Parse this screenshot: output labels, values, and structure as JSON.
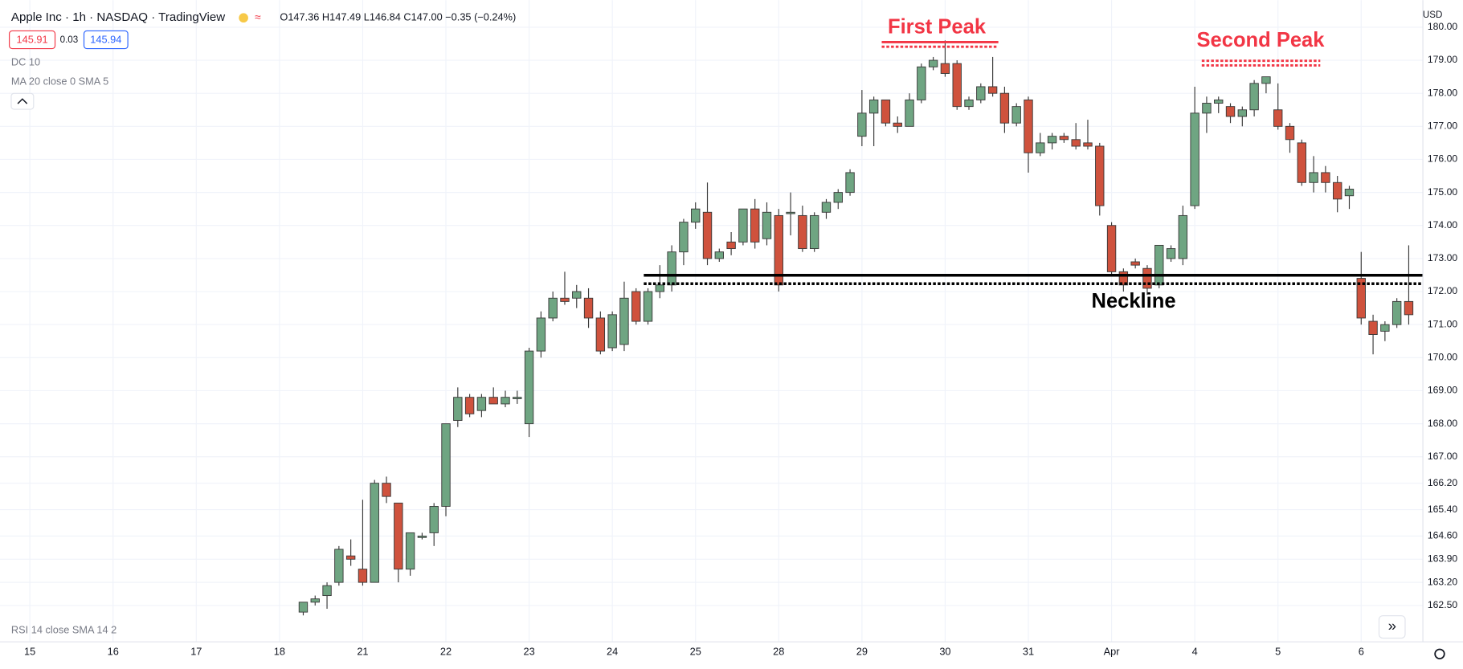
{
  "chart_data": {
    "type": "candlestick",
    "symbol": "Apple Inc · 1h · NASDAQ · TradingView",
    "ohlc_legend": "O147.36 H147.49 L146.84 C147.00 −0.35 (−0.24%)",
    "bid": "145.91",
    "spread": "0.03",
    "ask": "145.94",
    "indicators": [
      "DC 10",
      "MA 20 close 0 SMA 5",
      "RSI 14 close SMA 14 2"
    ],
    "currency": "USD",
    "annotations": [
      "First Peak",
      "Second Peak",
      "Neckline"
    ],
    "up_color": "#6fa582",
    "down_color": "#cf523d",
    "grid": true,
    "categories": [
      "15",
      null,
      null,
      null,
      null,
      null,
      null,
      "16",
      null,
      null,
      null,
      null,
      null,
      null,
      "17",
      null,
      null,
      null,
      null,
      null,
      null,
      "18",
      null,
      null,
      null,
      null,
      null,
      null,
      "21",
      null,
      null,
      null,
      null,
      null,
      null,
      "22",
      null,
      null,
      null,
      null,
      null,
      null,
      "23",
      null,
      null,
      null,
      null,
      null,
      null,
      "24",
      null,
      null,
      null,
      null,
      null,
      null,
      "25",
      null,
      null,
      null,
      null,
      null,
      null,
      "28",
      null,
      null,
      null,
      null,
      null,
      null,
      "29",
      null,
      null,
      null,
      null,
      null,
      null,
      "30",
      null,
      null,
      null,
      null,
      null,
      null,
      "31",
      null,
      null,
      null,
      null,
      null,
      null,
      "Apr",
      null,
      null,
      null,
      null,
      null,
      null,
      "4",
      null,
      null,
      null,
      null,
      null,
      null,
      "5",
      null,
      null,
      null,
      null,
      null,
      null,
      "6",
      null,
      null,
      null,
      null
    ],
    "open": [
      null,
      null,
      null,
      null,
      null,
      null,
      null,
      null,
      null,
      null,
      null,
      null,
      null,
      null,
      null,
      null,
      null,
      null,
      null,
      null,
      null,
      null,
      null,
      162.3,
      162.6,
      162.8,
      163.2,
      164.0,
      163.6,
      163.2,
      166.2,
      165.6,
      163.6,
      164.6,
      164.7,
      165.5,
      168.1,
      168.8,
      168.4,
      168.8,
      168.6,
      168.8,
      168.0,
      170.2,
      171.2,
      171.8,
      171.8,
      171.8,
      171.2,
      170.3,
      170.4,
      172.0,
      171.1,
      172.0,
      172.2,
      173.2,
      174.1,
      174.4,
      173.0,
      173.5,
      173.5,
      174.5,
      173.6,
      174.3,
      174.4,
      174.3,
      173.3,
      174.4,
      174.7,
      175.0,
      176.7,
      177.4,
      177.8,
      177.1,
      177.0,
      177.8,
      178.8,
      178.9,
      178.9,
      177.6,
      177.8,
      178.2,
      178.0,
      177.1,
      177.8,
      176.2,
      176.5,
      176.7,
      176.6,
      176.5,
      176.4,
      174.0,
      172.6,
      172.9,
      172.7,
      172.2,
      173.0,
      173.0,
      174.6,
      177.4,
      177.7,
      177.6,
      177.3,
      177.5,
      178.3,
      177.5,
      177.0,
      176.5,
      175.3,
      175.6,
      175.3,
      174.9,
      172.4,
      171.1,
      170.8,
      171.0,
      171.7
    ],
    "high": [
      null,
      null,
      null,
      null,
      null,
      null,
      null,
      null,
      null,
      null,
      null,
      null,
      null,
      null,
      null,
      null,
      null,
      null,
      null,
      null,
      null,
      null,
      null,
      162.6,
      162.8,
      163.2,
      164.3,
      164.5,
      165.7,
      166.3,
      166.4,
      165.6,
      164.7,
      164.7,
      165.6,
      168.0,
      169.1,
      168.9,
      168.9,
      169.1,
      169.0,
      169.0,
      170.3,
      171.4,
      172.0,
      172.6,
      172.2,
      172.1,
      171.4,
      171.4,
      172.3,
      172.1,
      172.1,
      172.8,
      173.4,
      174.2,
      174.7,
      175.3,
      173.3,
      173.8,
      174.5,
      174.8,
      174.7,
      174.5,
      175.0,
      174.6,
      174.4,
      174.8,
      175.1,
      175.7,
      178.1,
      177.9,
      177.8,
      177.3,
      178.0,
      178.9,
      179.1,
      179.6,
      179.0,
      177.9,
      178.3,
      179.1,
      178.2,
      177.7,
      177.9,
      176.8,
      176.8,
      176.8,
      177.1,
      177.2,
      176.5,
      174.1,
      172.7,
      173.0,
      172.8,
      173.4,
      173.4,
      174.6,
      178.2,
      177.9,
      177.9,
      177.7,
      177.6,
      178.4,
      178.5,
      178.3,
      177.1,
      176.6,
      176.1,
      175.8,
      175.5,
      175.2,
      173.2,
      171.3,
      171.1,
      171.8,
      173.4
    ],
    "low": [
      null,
      null,
      null,
      null,
      null,
      null,
      null,
      null,
      null,
      null,
      null,
      null,
      null,
      null,
      null,
      null,
      null,
      null,
      null,
      null,
      null,
      null,
      null,
      162.2,
      162.5,
      162.4,
      163.1,
      163.7,
      163.1,
      163.2,
      165.6,
      163.2,
      163.4,
      164.5,
      164.3,
      165.2,
      167.9,
      168.2,
      168.2,
      168.6,
      168.5,
      168.6,
      167.6,
      170.0,
      171.1,
      171.6,
      171.5,
      170.9,
      170.1,
      170.2,
      170.2,
      171.0,
      171.0,
      171.8,
      172.0,
      172.8,
      173.9,
      172.8,
      172.9,
      173.1,
      173.4,
      173.3,
      173.4,
      172.0,
      173.7,
      173.2,
      173.2,
      174.2,
      174.5,
      174.9,
      176.4,
      176.4,
      177.0,
      176.8,
      177.0,
      177.7,
      178.7,
      178.5,
      177.5,
      177.5,
      177.7,
      177.9,
      176.8,
      177.0,
      175.6,
      176.1,
      176.3,
      176.5,
      176.3,
      176.3,
      174.3,
      172.5,
      172.0,
      172.7,
      171.9,
      172.1,
      172.9,
      172.8,
      174.5,
      176.8,
      177.4,
      177.1,
      177.0,
      177.3,
      178.0,
      176.9,
      176.2,
      175.2,
      175.0,
      175.0,
      174.4,
      174.5,
      171.0,
      170.1,
      170.5,
      170.9,
      171.0
    ],
    "close": [
      null,
      null,
      null,
      null,
      null,
      null,
      null,
      null,
      null,
      null,
      null,
      null,
      null,
      null,
      null,
      null,
      null,
      null,
      null,
      null,
      null,
      null,
      null,
      162.6,
      162.7,
      163.1,
      164.2,
      163.9,
      163.2,
      166.2,
      165.8,
      163.6,
      164.7,
      164.6,
      165.5,
      168.0,
      168.8,
      168.3,
      168.8,
      168.6,
      168.8,
      168.8,
      170.2,
      171.2,
      171.8,
      171.7,
      172.0,
      171.2,
      170.2,
      171.3,
      171.8,
      171.1,
      172.0,
      172.2,
      173.2,
      174.1,
      174.5,
      173.0,
      173.2,
      173.3,
      174.5,
      173.5,
      174.4,
      172.2,
      174.4,
      173.3,
      174.3,
      174.7,
      175.0,
      175.6,
      177.4,
      177.8,
      177.1,
      177.0,
      177.8,
      178.8,
      179.0,
      178.6,
      177.6,
      177.8,
      178.2,
      178.0,
      177.1,
      177.6,
      176.2,
      176.5,
      176.7,
      176.6,
      176.4,
      176.4,
      174.6,
      172.6,
      172.2,
      172.8,
      172.1,
      173.4,
      173.3,
      174.3,
      177.4,
      177.7,
      177.8,
      177.3,
      177.5,
      178.3,
      178.5,
      177.0,
      176.6,
      175.3,
      175.6,
      175.3,
      174.8,
      175.1,
      171.2,
      170.7,
      171.0,
      171.7,
      171.3
    ],
    "ylim": [
      161.4,
      180.82
    ],
    "yticks": [
      {
        "value": 180,
        "label": "180.00"
      },
      {
        "value": 179,
        "label": "179.00"
      },
      {
        "value": 178,
        "label": "178.00"
      },
      {
        "value": 177,
        "label": "177.00"
      },
      {
        "value": 176,
        "label": "176.00"
      },
      {
        "value": 175,
        "label": "175.00"
      },
      {
        "value": 174,
        "label": "174.00"
      },
      {
        "value": 173,
        "label": "173.00"
      },
      {
        "value": 172,
        "label": "172.00"
      },
      {
        "value": 171,
        "label": "171.00"
      },
      {
        "value": 170,
        "label": "170.00"
      },
      {
        "value": 169,
        "label": "169.00"
      },
      {
        "value": 168,
        "label": "168.00"
      },
      {
        "value": 167,
        "label": "167.00"
      },
      {
        "value": 166.2,
        "label": "166.20"
      },
      {
        "value": 165.4,
        "label": "165.40"
      },
      {
        "value": 164.6,
        "label": "164.60"
      },
      {
        "value": 163.9,
        "label": "163.90"
      },
      {
        "value": 163.2,
        "label": "163.20"
      },
      {
        "value": 162.5,
        "label": "162.50"
      }
    ]
  }
}
